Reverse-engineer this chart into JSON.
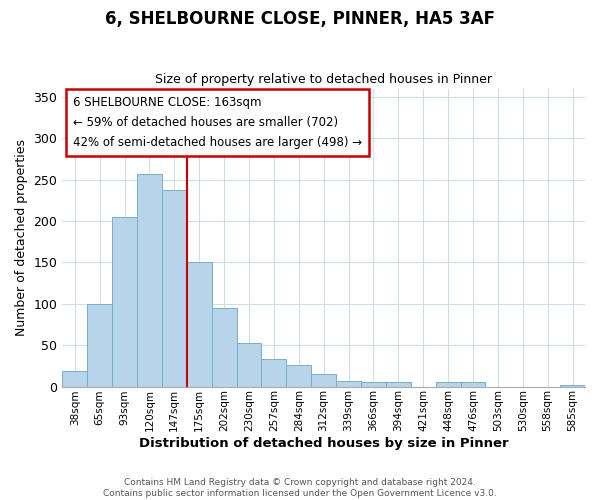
{
  "title": "6, SHELBOURNE CLOSE, PINNER, HA5 3AF",
  "subtitle": "Size of property relative to detached houses in Pinner",
  "xlabel": "Distribution of detached houses by size in Pinner",
  "ylabel": "Number of detached properties",
  "bar_labels": [
    "38sqm",
    "65sqm",
    "93sqm",
    "120sqm",
    "147sqm",
    "175sqm",
    "202sqm",
    "230sqm",
    "257sqm",
    "284sqm",
    "312sqm",
    "339sqm",
    "366sqm",
    "394sqm",
    "421sqm",
    "448sqm",
    "476sqm",
    "503sqm",
    "530sqm",
    "558sqm",
    "585sqm"
  ],
  "bar_heights": [
    19,
    100,
    205,
    257,
    237,
    150,
    95,
    53,
    33,
    26,
    15,
    7,
    5,
    5,
    0,
    5,
    5,
    0,
    0,
    0,
    2
  ],
  "bar_color": "#b8d4ea",
  "bar_edge_color": "#7aaecc",
  "vline_x_index": 4.5,
  "vline_color": "#cc0000",
  "ylim": [
    0,
    360
  ],
  "yticks": [
    0,
    50,
    100,
    150,
    200,
    250,
    300,
    350
  ],
  "annotation_title": "6 SHELBOURNE CLOSE: 163sqm",
  "annotation_line1": "← 59% of detached houses are smaller (702)",
  "annotation_line2": "42% of semi-detached houses are larger (498) →",
  "footer1": "Contains HM Land Registry data © Crown copyright and database right 2024.",
  "footer2": "Contains public sector information licensed under the Open Government Licence v3.0."
}
